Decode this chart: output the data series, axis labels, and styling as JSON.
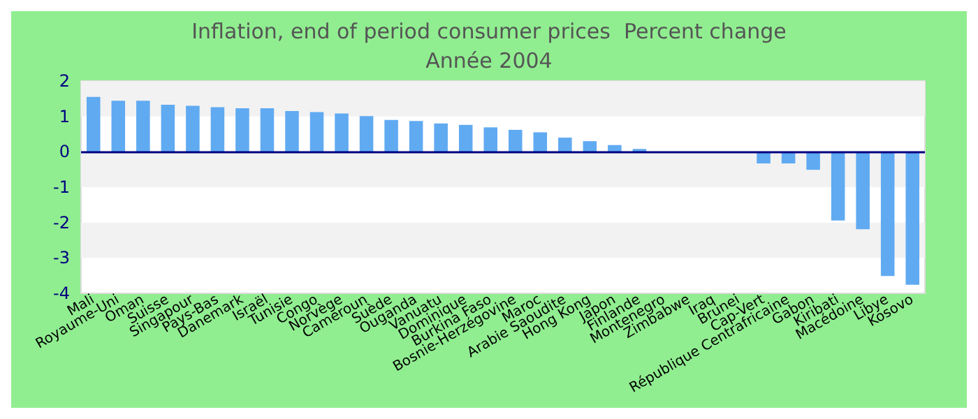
{
  "chart_data": {
    "type": "bar",
    "title": "Inflation, end of period consumer prices  Percent change",
    "subtitle": "Année 2004",
    "categories": [
      "Mali",
      "Royaume-Uni",
      "Oman",
      "Suisse",
      "Singapour",
      "Pays-Bas",
      "Danemark",
      "Israël",
      "Tunisie",
      "Congo",
      "Norvège",
      "Cameroun",
      "Suède",
      "Ouganda",
      "Vanuatu",
      "Dominique",
      "Burkina Faso",
      "Bosnie-Herzégovine",
      "Maroc",
      "Arabie Saoudite",
      "Hong Kong",
      "Japon",
      "Finlande",
      "Montenegro",
      "Zimbabwe",
      "Iraq",
      "Brunei",
      "Cap-Vert",
      "République Centrafricaine",
      "Gabon",
      "Kiribati",
      "Macédoine",
      "Libye",
      "Kosovo"
    ],
    "values": [
      1.55,
      1.44,
      1.44,
      1.33,
      1.3,
      1.26,
      1.23,
      1.23,
      1.15,
      1.12,
      1.08,
      1.01,
      0.9,
      0.87,
      0.8,
      0.76,
      0.69,
      0.62,
      0.55,
      0.4,
      0.3,
      0.19,
      0.08,
      null,
      null,
      null,
      null,
      -0.33,
      -0.33,
      -0.51,
      -1.94,
      -2.19,
      -3.51,
      -3.76
    ],
    "color": "#60aaf2",
    "ylim": [
      -4,
      2
    ],
    "yticks": [
      -4,
      -3,
      -2,
      -1,
      0,
      1,
      2
    ],
    "bands": [
      {
        "axis": "y",
        "from": 1,
        "to": 2,
        "color": "#f2f2f2"
      },
      {
        "axis": "y",
        "from": -1,
        "to": 0,
        "color": "#f2f2f2"
      },
      {
        "axis": "y",
        "from": -3,
        "to": -2,
        "color": "#f2f2f2"
      }
    ],
    "ref_lines": [
      {
        "axis": "y",
        "value": 0,
        "color": "#000080"
      }
    ]
  }
}
